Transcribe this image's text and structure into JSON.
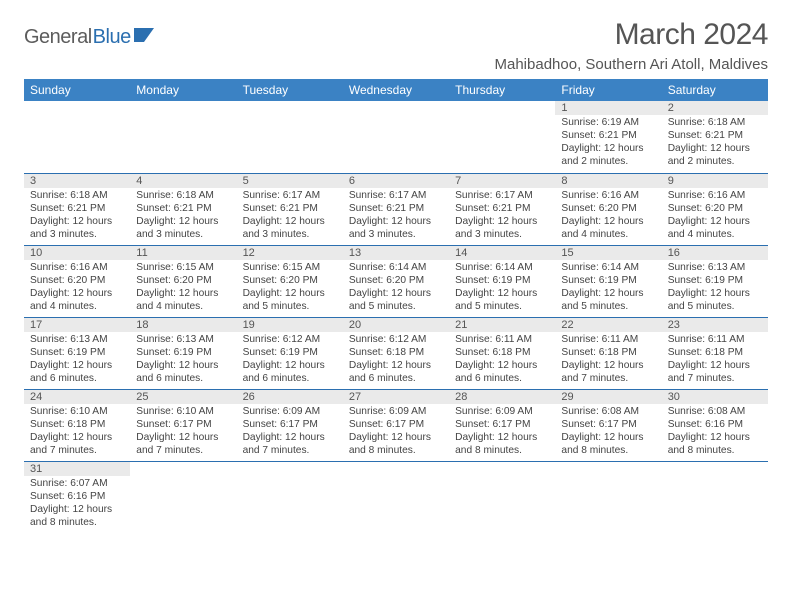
{
  "logo": {
    "part1": "General",
    "part2": "Blue",
    "accent_color": "#2b6fb0",
    "text_color": "#5c5c5c"
  },
  "title": "March 2024",
  "location": "Mahibadhoo, Southern Ari Atoll, Maldives",
  "colors": {
    "header_bg": "#3b82c4",
    "header_text": "#ffffff",
    "daynum_bg": "#eaeaea",
    "border": "#2b6fb0",
    "body_text": "#444"
  },
  "day_headers": [
    "Sunday",
    "Monday",
    "Tuesday",
    "Wednesday",
    "Thursday",
    "Friday",
    "Saturday"
  ],
  "weeks": [
    [
      null,
      null,
      null,
      null,
      null,
      {
        "n": "1",
        "sunrise": "Sunrise: 6:19 AM",
        "sunset": "Sunset: 6:21 PM",
        "daylight": "Daylight: 12 hours and 2 minutes."
      },
      {
        "n": "2",
        "sunrise": "Sunrise: 6:18 AM",
        "sunset": "Sunset: 6:21 PM",
        "daylight": "Daylight: 12 hours and 2 minutes."
      }
    ],
    [
      {
        "n": "3",
        "sunrise": "Sunrise: 6:18 AM",
        "sunset": "Sunset: 6:21 PM",
        "daylight": "Daylight: 12 hours and 3 minutes."
      },
      {
        "n": "4",
        "sunrise": "Sunrise: 6:18 AM",
        "sunset": "Sunset: 6:21 PM",
        "daylight": "Daylight: 12 hours and 3 minutes."
      },
      {
        "n": "5",
        "sunrise": "Sunrise: 6:17 AM",
        "sunset": "Sunset: 6:21 PM",
        "daylight": "Daylight: 12 hours and 3 minutes."
      },
      {
        "n": "6",
        "sunrise": "Sunrise: 6:17 AM",
        "sunset": "Sunset: 6:21 PM",
        "daylight": "Daylight: 12 hours and 3 minutes."
      },
      {
        "n": "7",
        "sunrise": "Sunrise: 6:17 AM",
        "sunset": "Sunset: 6:21 PM",
        "daylight": "Daylight: 12 hours and 3 minutes."
      },
      {
        "n": "8",
        "sunrise": "Sunrise: 6:16 AM",
        "sunset": "Sunset: 6:20 PM",
        "daylight": "Daylight: 12 hours and 4 minutes."
      },
      {
        "n": "9",
        "sunrise": "Sunrise: 6:16 AM",
        "sunset": "Sunset: 6:20 PM",
        "daylight": "Daylight: 12 hours and 4 minutes."
      }
    ],
    [
      {
        "n": "10",
        "sunrise": "Sunrise: 6:16 AM",
        "sunset": "Sunset: 6:20 PM",
        "daylight": "Daylight: 12 hours and 4 minutes."
      },
      {
        "n": "11",
        "sunrise": "Sunrise: 6:15 AM",
        "sunset": "Sunset: 6:20 PM",
        "daylight": "Daylight: 12 hours and 4 minutes."
      },
      {
        "n": "12",
        "sunrise": "Sunrise: 6:15 AM",
        "sunset": "Sunset: 6:20 PM",
        "daylight": "Daylight: 12 hours and 5 minutes."
      },
      {
        "n": "13",
        "sunrise": "Sunrise: 6:14 AM",
        "sunset": "Sunset: 6:20 PM",
        "daylight": "Daylight: 12 hours and 5 minutes."
      },
      {
        "n": "14",
        "sunrise": "Sunrise: 6:14 AM",
        "sunset": "Sunset: 6:19 PM",
        "daylight": "Daylight: 12 hours and 5 minutes."
      },
      {
        "n": "15",
        "sunrise": "Sunrise: 6:14 AM",
        "sunset": "Sunset: 6:19 PM",
        "daylight": "Daylight: 12 hours and 5 minutes."
      },
      {
        "n": "16",
        "sunrise": "Sunrise: 6:13 AM",
        "sunset": "Sunset: 6:19 PM",
        "daylight": "Daylight: 12 hours and 5 minutes."
      }
    ],
    [
      {
        "n": "17",
        "sunrise": "Sunrise: 6:13 AM",
        "sunset": "Sunset: 6:19 PM",
        "daylight": "Daylight: 12 hours and 6 minutes."
      },
      {
        "n": "18",
        "sunrise": "Sunrise: 6:13 AM",
        "sunset": "Sunset: 6:19 PM",
        "daylight": "Daylight: 12 hours and 6 minutes."
      },
      {
        "n": "19",
        "sunrise": "Sunrise: 6:12 AM",
        "sunset": "Sunset: 6:19 PM",
        "daylight": "Daylight: 12 hours and 6 minutes."
      },
      {
        "n": "20",
        "sunrise": "Sunrise: 6:12 AM",
        "sunset": "Sunset: 6:18 PM",
        "daylight": "Daylight: 12 hours and 6 minutes."
      },
      {
        "n": "21",
        "sunrise": "Sunrise: 6:11 AM",
        "sunset": "Sunset: 6:18 PM",
        "daylight": "Daylight: 12 hours and 6 minutes."
      },
      {
        "n": "22",
        "sunrise": "Sunrise: 6:11 AM",
        "sunset": "Sunset: 6:18 PM",
        "daylight": "Daylight: 12 hours and 7 minutes."
      },
      {
        "n": "23",
        "sunrise": "Sunrise: 6:11 AM",
        "sunset": "Sunset: 6:18 PM",
        "daylight": "Daylight: 12 hours and 7 minutes."
      }
    ],
    [
      {
        "n": "24",
        "sunrise": "Sunrise: 6:10 AM",
        "sunset": "Sunset: 6:18 PM",
        "daylight": "Daylight: 12 hours and 7 minutes."
      },
      {
        "n": "25",
        "sunrise": "Sunrise: 6:10 AM",
        "sunset": "Sunset: 6:17 PM",
        "daylight": "Daylight: 12 hours and 7 minutes."
      },
      {
        "n": "26",
        "sunrise": "Sunrise: 6:09 AM",
        "sunset": "Sunset: 6:17 PM",
        "daylight": "Daylight: 12 hours and 7 minutes."
      },
      {
        "n": "27",
        "sunrise": "Sunrise: 6:09 AM",
        "sunset": "Sunset: 6:17 PM",
        "daylight": "Daylight: 12 hours and 8 minutes."
      },
      {
        "n": "28",
        "sunrise": "Sunrise: 6:09 AM",
        "sunset": "Sunset: 6:17 PM",
        "daylight": "Daylight: 12 hours and 8 minutes."
      },
      {
        "n": "29",
        "sunrise": "Sunrise: 6:08 AM",
        "sunset": "Sunset: 6:17 PM",
        "daylight": "Daylight: 12 hours and 8 minutes."
      },
      {
        "n": "30",
        "sunrise": "Sunrise: 6:08 AM",
        "sunset": "Sunset: 6:16 PM",
        "daylight": "Daylight: 12 hours and 8 minutes."
      }
    ],
    [
      {
        "n": "31",
        "sunrise": "Sunrise: 6:07 AM",
        "sunset": "Sunset: 6:16 PM",
        "daylight": "Daylight: 12 hours and 8 minutes."
      },
      null,
      null,
      null,
      null,
      null,
      null
    ]
  ]
}
